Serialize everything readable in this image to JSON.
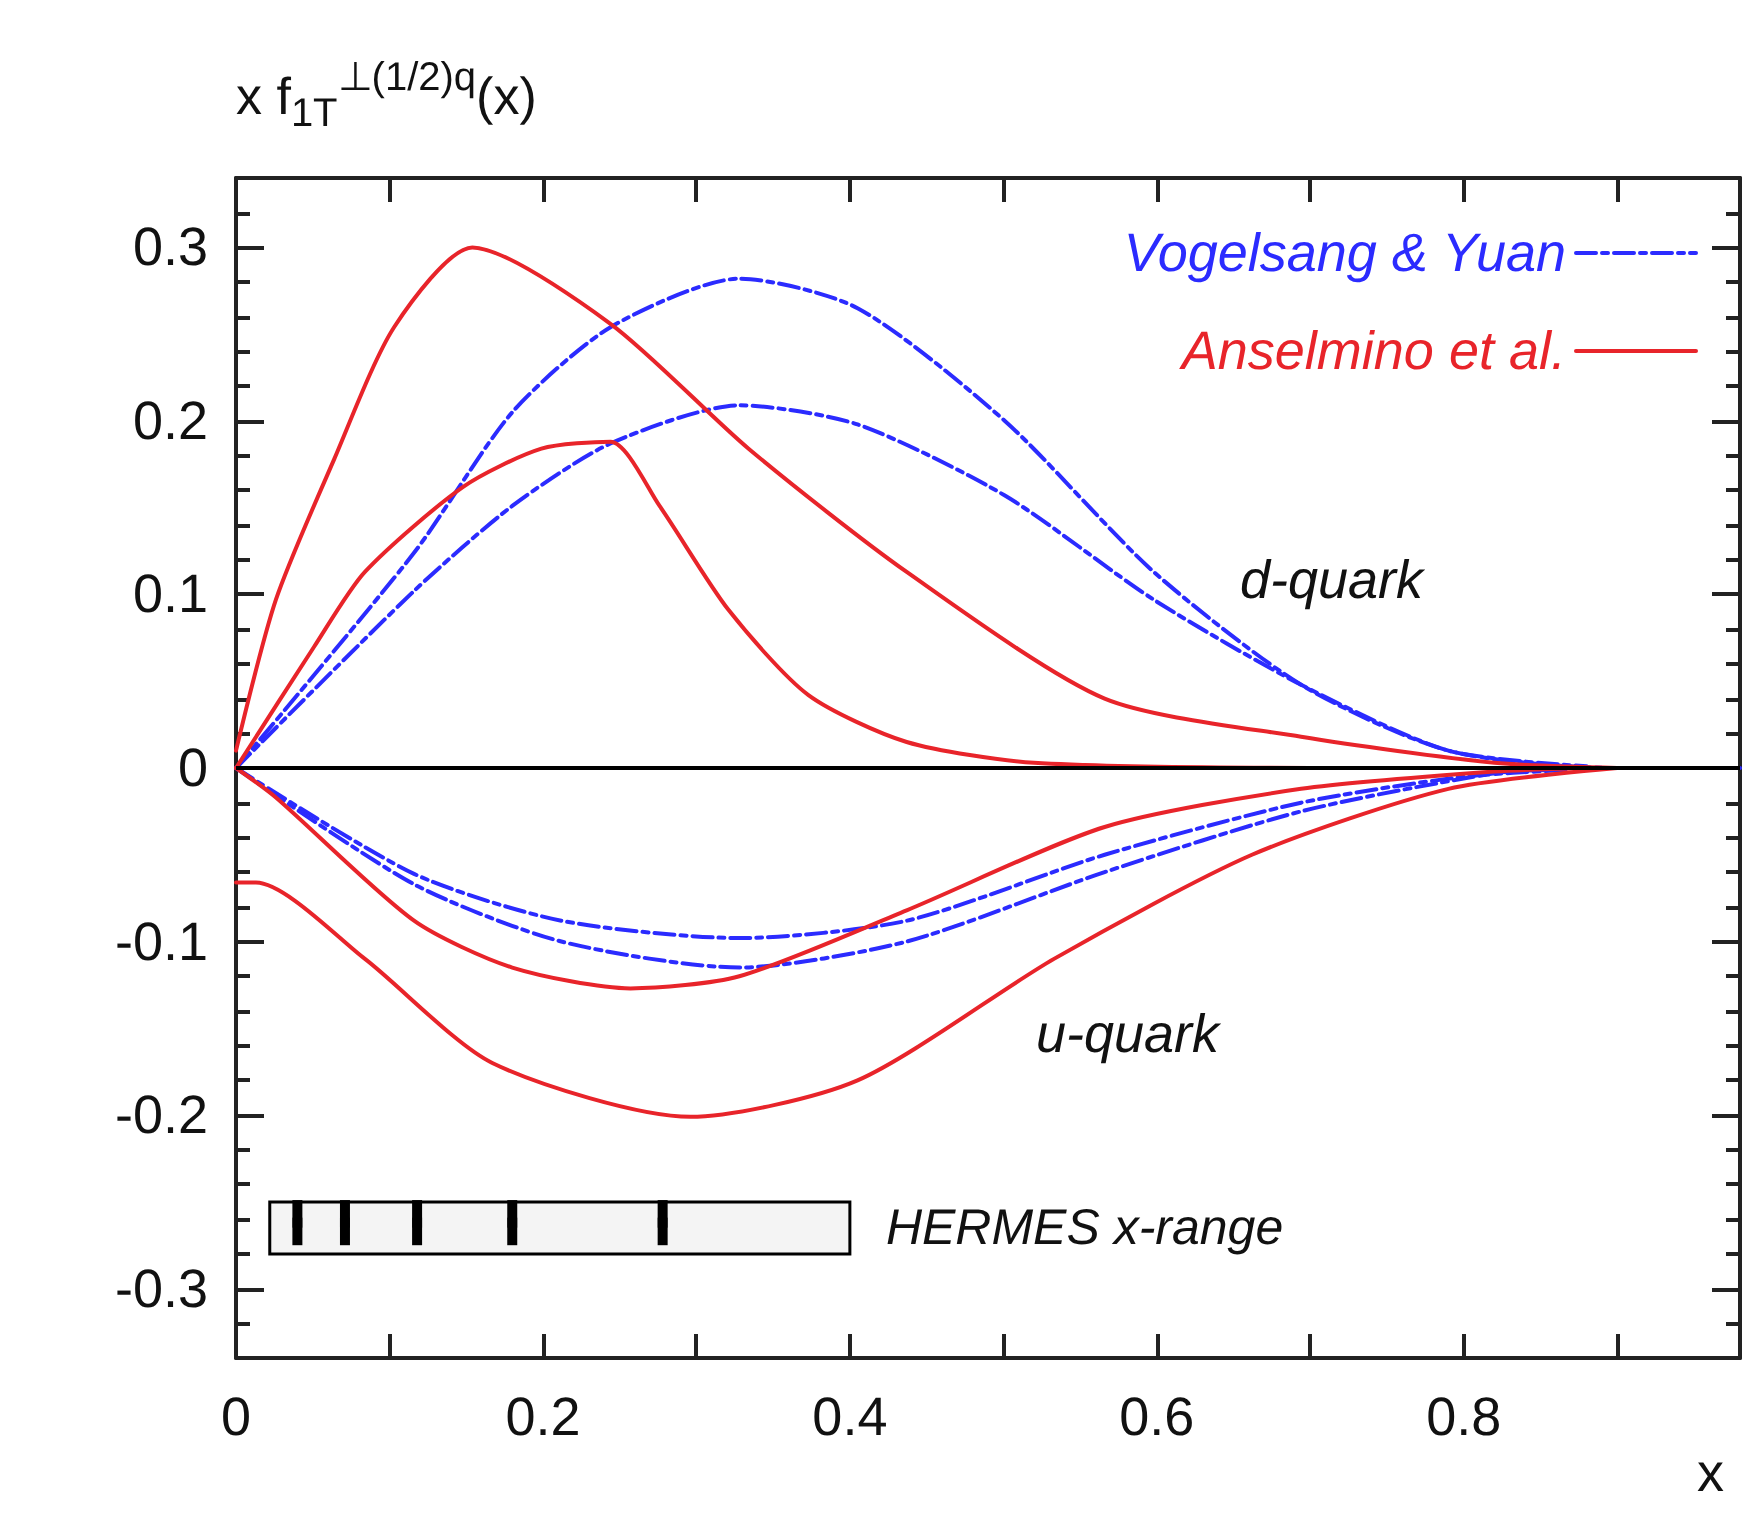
{
  "chart_data": {
    "type": "line",
    "xlabel": "x",
    "ylabel": "x f$_{1T}$$^{⊥(1/2)q}$(x)",
    "xlim": [
      0,
      0.98
    ],
    "ylim": [
      -0.34,
      0.34
    ],
    "xticks": [
      0,
      {
        "value": 0.1,
        "label": null
      },
      0.2,
      {
        "value": 0.3,
        "label": null
      },
      0.4,
      {
        "value": 0.5,
        "label": null
      },
      0.6,
      {
        "value": 0.7,
        "label": null
      },
      0.8,
      {
        "value": 0.9,
        "label": null
      }
    ],
    "yticks": [
      -0.3,
      -0.2,
      -0.1,
      0,
      0.1,
      0.2,
      0.3
    ],
    "legend": "top right",
    "grid": false,
    "marker": "none",
    "ref_lines": [
      {
        "axis": "y",
        "value": 0,
        "label": null,
        "color": "#000000"
      }
    ],
    "bands": [
      {
        "axis": "x",
        "from": 0.022,
        "to": 0.4,
        "label": "HERMES x-range",
        "color": "#f4f4f4"
      }
    ],
    "annotations": [
      "d-quark",
      "u-quark"
    ],
    "series": [
      {
        "name": "Vogelsang & Yuan",
        "color": "#2b2bff",
        "line_style": "dashed",
        "x": [
          0,
          0.116,
          0.18,
          0.244,
          0.328,
          0.405,
          0.501,
          0.598,
          0.694,
          0.79,
          0.9,
          0.98
        ],
        "values": [
          0,
          0.124,
          0.205,
          0.254,
          0.282,
          0.265,
          0.2,
          0.113,
          0.048,
          0.01,
          0,
          0
        ]
      },
      {
        "color": "#2b2bff",
        "line_style": "dashed",
        "x": [
          0,
          0.116,
          0.18,
          0.244,
          0.328,
          0.405,
          0.501,
          0.598,
          0.694,
          0.79,
          0.88
        ],
        "values": [
          0,
          0.102,
          0.151,
          0.187,
          0.209,
          0.198,
          0.157,
          0.097,
          0.048,
          0.01,
          0.001
        ]
      },
      {
        "color": "#2b2bff",
        "line_style": "dashed",
        "x": [
          0,
          0.116,
          0.212,
          0.328,
          0.437,
          0.566,
          0.694,
          0.8,
          0.87
        ],
        "values": [
          0,
          -0.061,
          -0.088,
          -0.098,
          -0.088,
          -0.05,
          -0.02,
          -0.005,
          -0.001
        ]
      },
      {
        "color": "#2b2bff",
        "line_style": "dashed",
        "x": [
          0,
          0.116,
          0.212,
          0.328,
          0.437,
          0.566,
          0.694,
          0.82,
          0.86
        ],
        "values": [
          0,
          -0.067,
          -0.1,
          -0.115,
          -0.1,
          -0.06,
          -0.025,
          -0.003,
          -0.001
        ]
      },
      {
        "name": "Anselmino et al.",
        "color": "#e8242a",
        "line_style": "solid",
        "x": [
          0,
          0.026,
          0.064,
          0.103,
          0.154,
          0.244,
          0.334,
          0.437,
          0.566,
          0.694,
          0.82,
          0.9
        ],
        "values": [
          0.01,
          0.097,
          0.178,
          0.254,
          0.3,
          0.256,
          0.184,
          0.113,
          0.04,
          0.018,
          0.003,
          0
        ]
      },
      {
        "color": "#e8242a",
        "line_style": "solid",
        "x": [
          0,
          0.051,
          0.084,
          0.148,
          0.199,
          0.244,
          0.276,
          0.321,
          0.373,
          0.437,
          0.52,
          0.7
        ],
        "values": [
          0,
          0.07,
          0.113,
          0.162,
          0.184,
          0.188,
          0.151,
          0.091,
          0.042,
          0.015,
          0.003,
          0
        ]
      },
      {
        "color": "#e8242a",
        "line_style": "solid",
        "x": [
          0,
          0.026,
          0.116,
          0.18,
          0.257,
          0.328,
          0.437,
          0.566,
          0.694,
          0.82,
          0.88
        ],
        "values": [
          0,
          -0.017,
          -0.088,
          -0.115,
          -0.127,
          -0.12,
          -0.082,
          -0.034,
          -0.012,
          -0.002,
          0
        ]
      },
      {
        "color": "#e8242a",
        "line_style": "solid",
        "x": [
          0,
          0.013,
          0.084,
          0.167,
          0.296,
          0.405,
          0.533,
          0.662,
          0.79,
          0.9
        ],
        "values": [
          -0.066,
          -0.066,
          -0.11,
          -0.17,
          -0.201,
          -0.18,
          -0.11,
          -0.05,
          -0.012,
          0
        ]
      },
      {
        "type": "scatter",
        "color": "#000000",
        "marker": "square",
        "x": [
          0.04,
          0.071,
          0.118,
          0.18,
          0.278
        ],
        "values": [
          -0.262,
          -0.262,
          -0.262,
          -0.262,
          -0.262
        ],
        "errors": [
          0.013,
          0.013,
          0.013,
          0.013,
          0.013
        ]
      }
    ]
  }
}
